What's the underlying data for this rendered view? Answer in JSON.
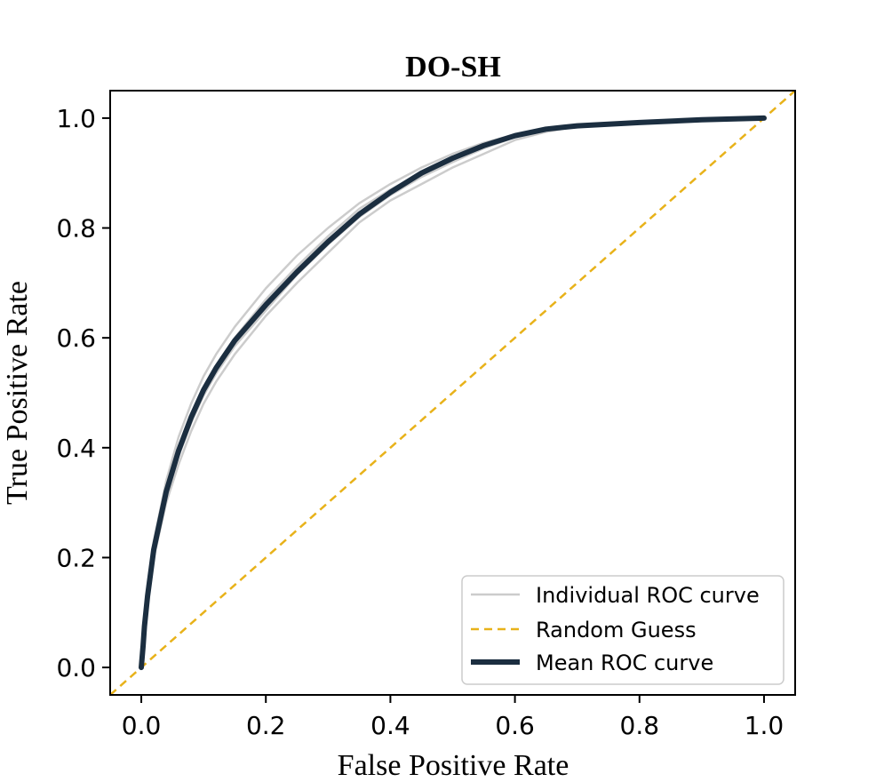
{
  "chart_data": {
    "type": "line",
    "title": "DO-SH",
    "xlabel": "False Positive Rate",
    "ylabel": "True Positive Rate",
    "xlim": [
      -0.05,
      1.05
    ],
    "ylim": [
      -0.05,
      1.05
    ],
    "xticks": [
      0.0,
      0.2,
      0.4,
      0.6,
      0.8,
      1.0
    ],
    "yticks": [
      0.0,
      0.2,
      0.4,
      0.6,
      0.8,
      1.0
    ],
    "xtick_labels": [
      "0.0",
      "0.2",
      "0.4",
      "0.6",
      "0.8",
      "1.0"
    ],
    "ytick_labels": [
      "0.0",
      "0.2",
      "0.4",
      "0.6",
      "0.8",
      "1.0"
    ],
    "legend_position": "lower-right",
    "series": [
      {
        "name": "Individual ROC curve",
        "style": "solid",
        "color": "#cccccc",
        "curves": [
          {
            "x": [
              0.0,
              0.005,
              0.01,
              0.02,
              0.04,
              0.06,
              0.08,
              0.1,
              0.12,
              0.15,
              0.2,
              0.25,
              0.3,
              0.35,
              0.4,
              0.45,
              0.5,
              0.55,
              0.6,
              0.65,
              0.7,
              0.8,
              0.9,
              1.0
            ],
            "y": [
              0.0,
              0.09,
              0.15,
              0.23,
              0.34,
              0.42,
              0.48,
              0.53,
              0.57,
              0.62,
              0.69,
              0.75,
              0.8,
              0.845,
              0.88,
              0.91,
              0.935,
              0.955,
              0.97,
              0.982,
              0.988,
              0.993,
              0.997,
              1.0
            ]
          },
          {
            "x": [
              0.0,
              0.005,
              0.01,
              0.02,
              0.04,
              0.06,
              0.08,
              0.1,
              0.12,
              0.15,
              0.2,
              0.25,
              0.3,
              0.35,
              0.4,
              0.45,
              0.5,
              0.55,
              0.6,
              0.65,
              0.7,
              0.8,
              0.9,
              1.0
            ],
            "y": [
              0.0,
              0.07,
              0.12,
              0.2,
              0.3,
              0.37,
              0.43,
              0.48,
              0.52,
              0.57,
              0.64,
              0.7,
              0.755,
              0.81,
              0.85,
              0.88,
              0.91,
              0.935,
              0.96,
              0.975,
              0.985,
              0.992,
              0.997,
              1.0
            ]
          },
          {
            "x": [
              0.0,
              0.005,
              0.01,
              0.02,
              0.04,
              0.06,
              0.08,
              0.1,
              0.12,
              0.15,
              0.2,
              0.25,
              0.3,
              0.35,
              0.4,
              0.45,
              0.5,
              0.55,
              0.6,
              0.65,
              0.7,
              0.8,
              0.9,
              1.0
            ],
            "y": [
              0.0,
              0.08,
              0.14,
              0.22,
              0.33,
              0.4,
              0.46,
              0.51,
              0.55,
              0.6,
              0.67,
              0.73,
              0.785,
              0.835,
              0.87,
              0.9,
              0.928,
              0.95,
              0.968,
              0.98,
              0.987,
              0.993,
              0.997,
              1.0
            ]
          },
          {
            "x": [
              0.0,
              0.005,
              0.01,
              0.02,
              0.04,
              0.06,
              0.08,
              0.1,
              0.12,
              0.15,
              0.2,
              0.25,
              0.3,
              0.35,
              0.4,
              0.45,
              0.5,
              0.55,
              0.6,
              0.65,
              0.7,
              0.8,
              0.9,
              1.0
            ],
            "y": [
              0.0,
              0.075,
              0.13,
              0.21,
              0.31,
              0.385,
              0.445,
              0.495,
              0.535,
              0.585,
              0.65,
              0.715,
              0.77,
              0.82,
              0.86,
              0.893,
              0.92,
              0.945,
              0.965,
              0.978,
              0.986,
              0.992,
              0.997,
              1.0
            ]
          }
        ]
      },
      {
        "name": "Random Guess",
        "style": "dashed",
        "color": "#e8b21a",
        "x": [
          -0.05,
          1.05
        ],
        "y": [
          -0.05,
          1.05
        ]
      },
      {
        "name": "Mean ROC curve",
        "style": "solid-thick",
        "color": "#1b2e40",
        "x": [
          0.0,
          0.003,
          0.005,
          0.01,
          0.02,
          0.04,
          0.06,
          0.08,
          0.1,
          0.12,
          0.15,
          0.2,
          0.25,
          0.3,
          0.35,
          0.4,
          0.45,
          0.5,
          0.55,
          0.6,
          0.65,
          0.7,
          0.8,
          0.9,
          1.0
        ],
        "y": [
          0.0,
          0.04,
          0.075,
          0.13,
          0.215,
          0.32,
          0.395,
          0.455,
          0.505,
          0.545,
          0.595,
          0.66,
          0.72,
          0.775,
          0.825,
          0.865,
          0.9,
          0.927,
          0.95,
          0.968,
          0.98,
          0.986,
          0.992,
          0.997,
          1.0
        ]
      }
    ]
  }
}
